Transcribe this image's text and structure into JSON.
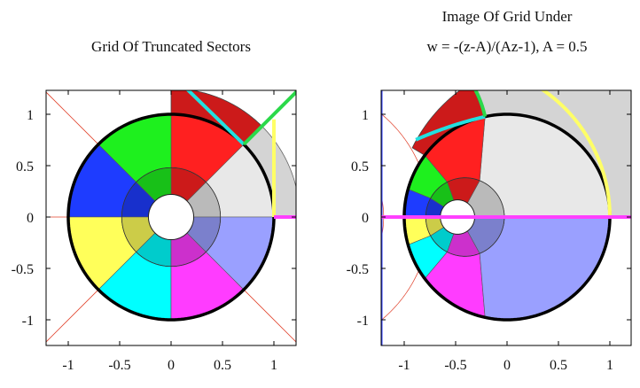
{
  "chart_data": [
    {
      "type": "diagram",
      "title": "Grid Of Truncated Sectors",
      "xlim": [
        -1.3,
        1.3
      ],
      "ylim": [
        -1.3,
        1.3
      ],
      "xticks": [
        -1,
        -0.5,
        0,
        0.5,
        1
      ],
      "xtick_labels": [
        "-1",
        "-0.5",
        "0",
        "0.5",
        "1"
      ],
      "yticks": [
        1,
        0.5,
        0,
        -0.5,
        -1
      ],
      "ytick_labels": [
        "1",
        "0.5",
        "0",
        "-0.5",
        "-1"
      ],
      "rings": [
        0.22,
        0.48,
        1.0,
        1.25
      ],
      "sector_angles_deg": [
        0,
        45,
        90,
        135,
        180,
        225,
        270,
        315,
        360
      ],
      "sector_colors": [
        "#e8e8e8",
        "#ff2020",
        "#1ef01e",
        "#1e3cff",
        "#ffff5a",
        "#00ffff",
        "#ff3cff",
        "#9aa0ff"
      ],
      "unit_circle": 1.0
    },
    {
      "type": "diagram",
      "title_line1": "Image Of Grid Under",
      "title_line2": "w = -(z-A)/(Az-1), A = 0.5",
      "transform_A": 0.5,
      "xlim": [
        -1.3,
        1.3
      ],
      "ylim": [
        -1.3,
        1.3
      ],
      "xticks": [
        -1,
        -0.5,
        0,
        0.5,
        1
      ],
      "xtick_labels": [
        "-1",
        "-0.5",
        "0",
        "0.5",
        "1"
      ],
      "yticks": [
        1,
        0.5,
        0,
        -0.5,
        -1
      ],
      "ytick_labels": [
        "1",
        "0.5",
        "0",
        "-0.5",
        "-1"
      ]
    }
  ]
}
